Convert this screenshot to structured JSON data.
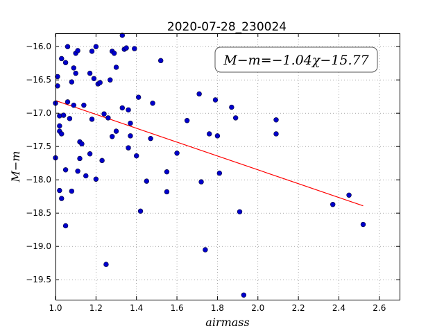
{
  "chart_data": {
    "type": "scatter",
    "title": "2020-07-28_230024",
    "xlabel": "airmass",
    "ylabel": "M−m",
    "xlim": [
      1.0,
      2.7
    ],
    "ylim": [
      -19.8,
      -15.8
    ],
    "y_inverted": true,
    "grid": true,
    "xticks": [
      "1.0",
      "1.2",
      "1.4",
      "1.6",
      "1.8",
      "2.0",
      "2.2",
      "2.4",
      "2.6"
    ],
    "yticks": [
      "−16.0",
      "−16.5",
      "−17.0",
      "−17.5",
      "−18.0",
      "−18.5",
      "−19.0",
      "−19.5"
    ],
    "annotation": "M−m=−1.04χ−15.77",
    "colors": {
      "points": "#0000cc",
      "fit": "#ff0000"
    },
    "fit": {
      "slope": -1.04,
      "intercept": -15.77,
      "x_range": [
        1.0,
        2.52
      ]
    },
    "points": [
      [
        1.0,
        -16.85
      ],
      [
        1.0,
        -17.67
      ],
      [
        1.01,
        -16.45
      ],
      [
        1.01,
        -16.59
      ],
      [
        1.02,
        -17.04
      ],
      [
        1.02,
        -17.19
      ],
      [
        1.02,
        -17.27
      ],
      [
        1.02,
        -18.16
      ],
      [
        1.03,
        -18.28
      ],
      [
        1.03,
        -17.31
      ],
      [
        1.03,
        -16.18
      ],
      [
        1.04,
        -17.03
      ],
      [
        1.05,
        -16.24
      ],
      [
        1.05,
        -17.85
      ],
      [
        1.05,
        -18.69
      ],
      [
        1.06,
        -16.0
      ],
      [
        1.06,
        -16.83
      ],
      [
        1.07,
        -17.08
      ],
      [
        1.08,
        -16.53
      ],
      [
        1.08,
        -18.17
      ],
      [
        1.09,
        -16.32
      ],
      [
        1.09,
        -16.88
      ],
      [
        1.1,
        -16.1
      ],
      [
        1.1,
        -16.4
      ],
      [
        1.11,
        -16.06
      ],
      [
        1.11,
        -17.87
      ],
      [
        1.12,
        -17.43
      ],
      [
        1.12,
        -17.68
      ],
      [
        1.13,
        -17.46
      ],
      [
        1.14,
        -16.88
      ],
      [
        1.15,
        -17.94
      ],
      [
        1.17,
        -16.4
      ],
      [
        1.17,
        -17.61
      ],
      [
        1.18,
        -16.07
      ],
      [
        1.18,
        -17.09
      ],
      [
        1.19,
        -16.48
      ],
      [
        1.2,
        -16.0
      ],
      [
        1.2,
        -17.99
      ],
      [
        1.21,
        -16.56
      ],
      [
        1.22,
        -16.54
      ],
      [
        1.23,
        -17.71
      ],
      [
        1.24,
        -17.01
      ],
      [
        1.25,
        -19.27
      ],
      [
        1.26,
        -17.07
      ],
      [
        1.27,
        -16.5
      ],
      [
        1.28,
        -16.07
      ],
      [
        1.28,
        -17.35
      ],
      [
        1.29,
        -16.1
      ],
      [
        1.3,
        -16.31
      ],
      [
        1.3,
        -17.27
      ],
      [
        1.33,
        -15.83
      ],
      [
        1.33,
        -16.92
      ],
      [
        1.34,
        -16.04
      ],
      [
        1.35,
        -16.02
      ],
      [
        1.36,
        -16.95
      ],
      [
        1.36,
        -17.52
      ],
      [
        1.37,
        -17.15
      ],
      [
        1.37,
        -17.34
      ],
      [
        1.39,
        -16.03
      ],
      [
        1.4,
        -17.64
      ],
      [
        1.41,
        -16.76
      ],
      [
        1.42,
        -18.47
      ],
      [
        1.45,
        -18.02
      ],
      [
        1.47,
        -17.38
      ],
      [
        1.48,
        -16.85
      ],
      [
        1.52,
        -16.21
      ],
      [
        1.55,
        -17.88
      ],
      [
        1.55,
        -18.18
      ],
      [
        1.6,
        -17.6
      ],
      [
        1.65,
        -17.11
      ],
      [
        1.71,
        -16.71
      ],
      [
        1.72,
        -18.03
      ],
      [
        1.74,
        -19.05
      ],
      [
        1.76,
        -17.31
      ],
      [
        1.79,
        -16.8
      ],
      [
        1.8,
        -17.34
      ],
      [
        1.81,
        -17.9
      ],
      [
        1.87,
        -16.91
      ],
      [
        1.89,
        -17.07
      ],
      [
        1.91,
        -18.48
      ],
      [
        1.93,
        -19.73
      ],
      [
        2.09,
        -17.1
      ],
      [
        2.09,
        -17.31
      ],
      [
        2.37,
        -18.37
      ],
      [
        2.45,
        -18.23
      ],
      [
        2.52,
        -18.67
      ]
    ]
  }
}
